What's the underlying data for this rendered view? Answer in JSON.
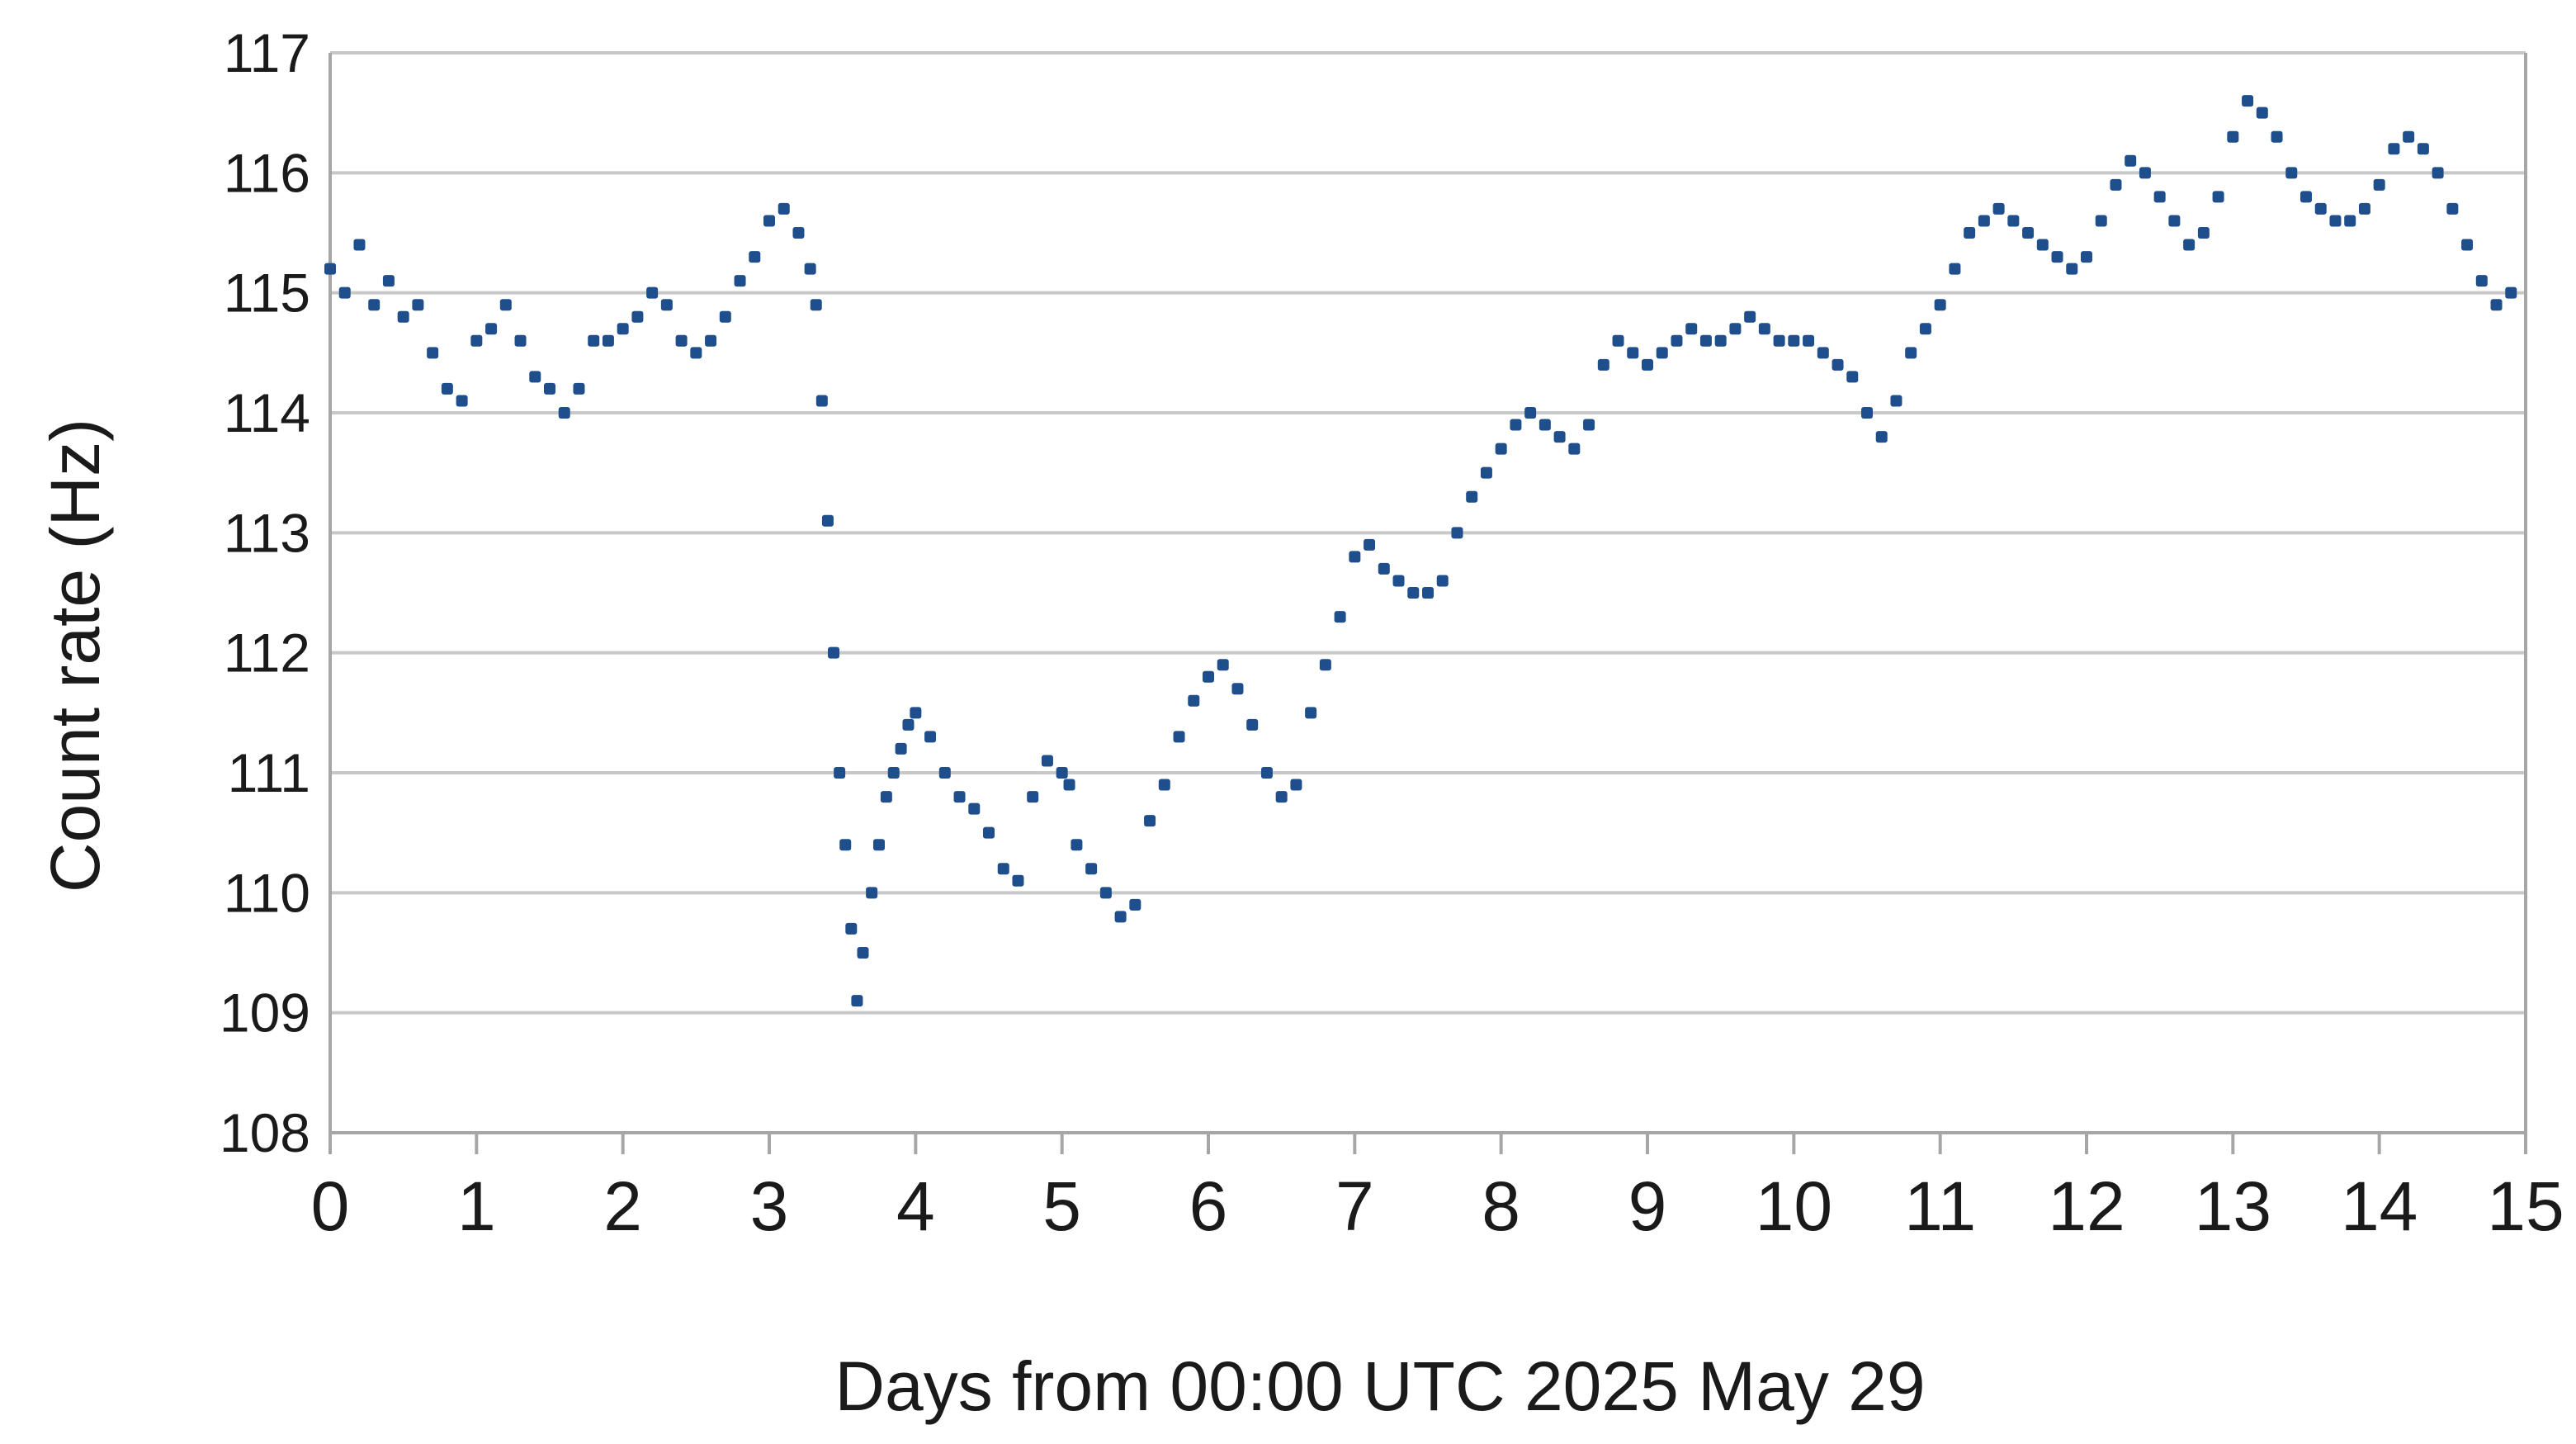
{
  "chart_data": {
    "type": "scatter",
    "title": "",
    "xlabel": "Days from 00:00 UTC 2025 May 29",
    "ylabel": "Count rate (Hz)",
    "xlim": [
      0,
      15
    ],
    "ylim": [
      108,
      117
    ],
    "xticks": [
      "0",
      "1",
      "2",
      "3",
      "4",
      "5",
      "6",
      "7",
      "8",
      "9",
      "10",
      "11",
      "12",
      "13",
      "14",
      "15"
    ],
    "yticks": [
      "108",
      "109",
      "110",
      "111",
      "112",
      "113",
      "114",
      "115",
      "116",
      "117"
    ],
    "grid": "horizontal",
    "legend": "none",
    "colors": {
      "marker": "#1f4e8c",
      "grid": "#c8c8c8",
      "axis": "#a6a6a6"
    },
    "series": [
      {
        "values": [
          [
            0.0,
            115.2
          ],
          [
            0.1,
            115.0
          ],
          [
            0.2,
            115.4
          ],
          [
            0.3,
            114.9
          ],
          [
            0.4,
            115.1
          ],
          [
            0.5,
            114.8
          ],
          [
            0.6,
            114.9
          ],
          [
            0.7,
            114.5
          ],
          [
            0.8,
            114.2
          ],
          [
            0.9,
            114.1
          ],
          [
            1.0,
            114.6
          ],
          [
            1.1,
            114.7
          ],
          [
            1.2,
            114.9
          ],
          [
            1.3,
            114.6
          ],
          [
            1.4,
            114.3
          ],
          [
            1.5,
            114.2
          ],
          [
            1.6,
            114.0
          ],
          [
            1.7,
            114.2
          ],
          [
            1.8,
            114.6
          ],
          [
            1.9,
            114.6
          ],
          [
            2.0,
            114.7
          ],
          [
            2.1,
            114.8
          ],
          [
            2.2,
            115.0
          ],
          [
            2.3,
            114.9
          ],
          [
            2.4,
            114.6
          ],
          [
            2.5,
            114.5
          ],
          [
            2.6,
            114.6
          ],
          [
            2.7,
            114.8
          ],
          [
            2.8,
            115.1
          ],
          [
            2.9,
            115.3
          ],
          [
            3.0,
            115.6
          ],
          [
            3.1,
            115.7
          ],
          [
            3.2,
            115.5
          ],
          [
            3.28,
            115.2
          ],
          [
            3.32,
            114.9
          ],
          [
            3.36,
            114.1
          ],
          [
            3.4,
            113.1
          ],
          [
            3.44,
            112.0
          ],
          [
            3.48,
            111.0
          ],
          [
            3.52,
            110.4
          ],
          [
            3.56,
            109.7
          ],
          [
            3.6,
            109.1
          ],
          [
            3.64,
            109.5
          ],
          [
            3.7,
            110.0
          ],
          [
            3.75,
            110.4
          ],
          [
            3.8,
            110.8
          ],
          [
            3.85,
            111.0
          ],
          [
            3.9,
            111.2
          ],
          [
            3.95,
            111.4
          ],
          [
            4.0,
            111.5
          ],
          [
            4.1,
            111.3
          ],
          [
            4.2,
            111.0
          ],
          [
            4.3,
            110.8
          ],
          [
            4.4,
            110.7
          ],
          [
            4.5,
            110.5
          ],
          [
            4.6,
            110.2
          ],
          [
            4.7,
            110.1
          ],
          [
            4.8,
            110.8
          ],
          [
            4.9,
            111.1
          ],
          [
            5.0,
            111.0
          ],
          [
            5.05,
            110.9
          ],
          [
            5.1,
            110.4
          ],
          [
            5.2,
            110.2
          ],
          [
            5.3,
            110.0
          ],
          [
            5.4,
            109.8
          ],
          [
            5.5,
            109.9
          ],
          [
            5.6,
            110.6
          ],
          [
            5.7,
            110.9
          ],
          [
            5.8,
            111.3
          ],
          [
            5.9,
            111.6
          ],
          [
            6.0,
            111.8
          ],
          [
            6.1,
            111.9
          ],
          [
            6.2,
            111.7
          ],
          [
            6.3,
            111.4
          ],
          [
            6.4,
            111.0
          ],
          [
            6.5,
            110.8
          ],
          [
            6.6,
            110.9
          ],
          [
            6.7,
            111.5
          ],
          [
            6.8,
            111.9
          ],
          [
            6.9,
            112.3
          ],
          [
            7.0,
            112.8
          ],
          [
            7.1,
            112.9
          ],
          [
            7.2,
            112.7
          ],
          [
            7.3,
            112.6
          ],
          [
            7.4,
            112.5
          ],
          [
            7.5,
            112.5
          ],
          [
            7.6,
            112.6
          ],
          [
            7.7,
            113.0
          ],
          [
            7.8,
            113.3
          ],
          [
            7.9,
            113.5
          ],
          [
            8.0,
            113.7
          ],
          [
            8.1,
            113.9
          ],
          [
            8.2,
            114.0
          ],
          [
            8.3,
            113.9
          ],
          [
            8.4,
            113.8
          ],
          [
            8.5,
            113.7
          ],
          [
            8.6,
            113.9
          ],
          [
            8.7,
            114.4
          ],
          [
            8.8,
            114.6
          ],
          [
            8.9,
            114.5
          ],
          [
            9.0,
            114.4
          ],
          [
            9.1,
            114.5
          ],
          [
            9.2,
            114.6
          ],
          [
            9.3,
            114.7
          ],
          [
            9.4,
            114.6
          ],
          [
            9.5,
            114.6
          ],
          [
            9.6,
            114.7
          ],
          [
            9.7,
            114.8
          ],
          [
            9.8,
            114.7
          ],
          [
            9.9,
            114.6
          ],
          [
            10.0,
            114.6
          ],
          [
            10.1,
            114.6
          ],
          [
            10.2,
            114.5
          ],
          [
            10.3,
            114.4
          ],
          [
            10.4,
            114.3
          ],
          [
            10.5,
            114.0
          ],
          [
            10.6,
            113.8
          ],
          [
            10.7,
            114.1
          ],
          [
            10.8,
            114.5
          ],
          [
            10.9,
            114.7
          ],
          [
            11.0,
            114.9
          ],
          [
            11.1,
            115.2
          ],
          [
            11.2,
            115.5
          ],
          [
            11.3,
            115.6
          ],
          [
            11.4,
            115.7
          ],
          [
            11.5,
            115.6
          ],
          [
            11.6,
            115.5
          ],
          [
            11.7,
            115.4
          ],
          [
            11.8,
            115.3
          ],
          [
            11.9,
            115.2
          ],
          [
            12.0,
            115.3
          ],
          [
            12.1,
            115.6
          ],
          [
            12.2,
            115.9
          ],
          [
            12.3,
            116.1
          ],
          [
            12.4,
            116.0
          ],
          [
            12.5,
            115.8
          ],
          [
            12.6,
            115.6
          ],
          [
            12.7,
            115.4
          ],
          [
            12.8,
            115.5
          ],
          [
            12.9,
            115.8
          ],
          [
            13.0,
            116.3
          ],
          [
            13.1,
            116.6
          ],
          [
            13.2,
            116.5
          ],
          [
            13.3,
            116.3
          ],
          [
            13.4,
            116.0
          ],
          [
            13.5,
            115.8
          ],
          [
            13.6,
            115.7
          ],
          [
            13.7,
            115.6
          ],
          [
            13.8,
            115.6
          ],
          [
            13.9,
            115.7
          ],
          [
            14.0,
            115.9
          ],
          [
            14.1,
            116.2
          ],
          [
            14.2,
            116.3
          ],
          [
            14.3,
            116.2
          ],
          [
            14.4,
            116.0
          ],
          [
            14.5,
            115.7
          ],
          [
            14.6,
            115.4
          ],
          [
            14.7,
            115.1
          ],
          [
            14.8,
            114.9
          ],
          [
            14.9,
            115.0
          ]
        ]
      }
    ]
  }
}
